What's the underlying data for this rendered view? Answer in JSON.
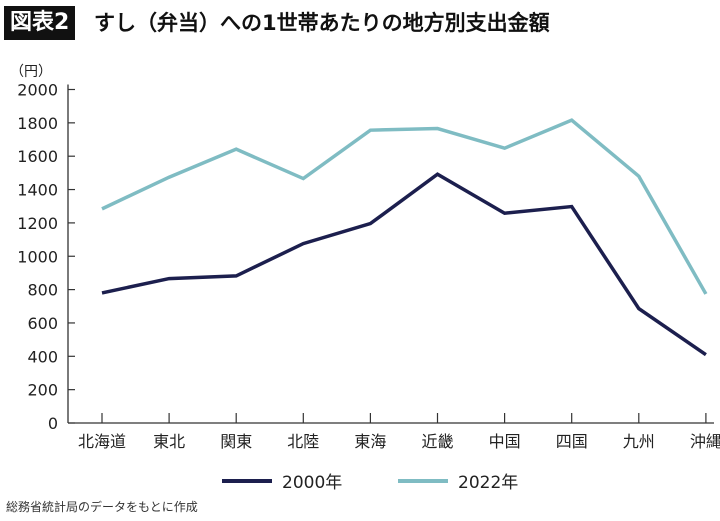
{
  "header": {
    "badge": "図表2",
    "title": "すし（弁当）への1世帯あたりの地方別支出金額"
  },
  "source": "総務省統計局のデータをもとに作成",
  "chart_data": {
    "type": "line",
    "title": "すし（弁当）への1世帯あたりの地方別支出金額",
    "ylabel": "（円）",
    "xlabel": "",
    "ylim": [
      0,
      2000
    ],
    "yticks": [
      0,
      200,
      400,
      600,
      800,
      1000,
      1200,
      1400,
      1600,
      1800,
      2000
    ],
    "categories": [
      "北海道",
      "東北",
      "関東",
      "北陸",
      "東海",
      "近畿",
      "中国",
      "四国",
      "九州",
      "沖縄"
    ],
    "legend": "bottom",
    "grid": false,
    "series": [
      {
        "name": "2000年",
        "color": "#1c1f4e",
        "values": [
          780,
          866,
          882,
          1076,
          1196,
          1492,
          1258,
          1298,
          686,
          410
        ]
      },
      {
        "name": "2022年",
        "color": "#7fbcc3",
        "values": [
          1284,
          1474,
          1642,
          1466,
          1756,
          1766,
          1648,
          1816,
          1480,
          774
        ]
      }
    ]
  }
}
